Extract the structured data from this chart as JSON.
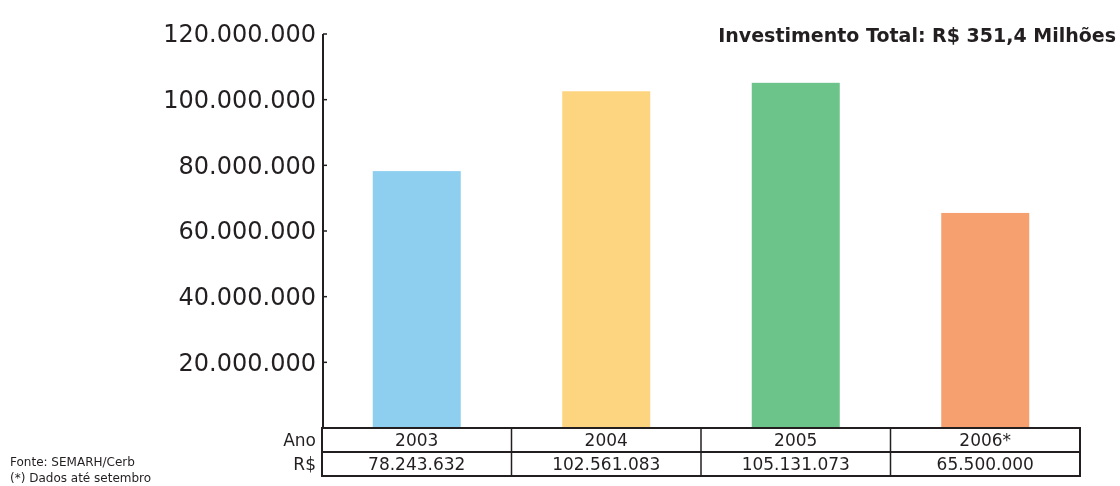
{
  "chart_data": {
    "type": "bar",
    "title": "Investimento Total: R$ 351,4 Milhões",
    "xlabel": "Ano",
    "ylabel": "R$",
    "categories": [
      "2003",
      "2004",
      "2005",
      "2006*"
    ],
    "values": [
      78243632,
      102561083,
      105131073,
      65500000
    ],
    "colors": [
      "#8ecff0",
      "#fdd47f",
      "#6cc48a",
      "#f6a070"
    ],
    "value_labels": [
      "78.243.632",
      "102.561.083",
      "105.131.073",
      "65.500.000"
    ],
    "ylim": [
      0,
      120000000
    ],
    "yticks": [
      {
        "value": 20000000,
        "label": "20.000.000"
      },
      {
        "value": 40000000,
        "label": "40.000.000"
      },
      {
        "value": 60000000,
        "label": "60.000.000"
      },
      {
        "value": 80000000,
        "label": "80.000.000"
      },
      {
        "value": 100000000,
        "label": "100.000.000"
      },
      {
        "value": 120000000,
        "label": "120.000.000"
      }
    ],
    "grid": false,
    "annotations": [
      "Fonte: SEMARH/Cerb",
      "(*) Dados até setembro"
    ]
  }
}
